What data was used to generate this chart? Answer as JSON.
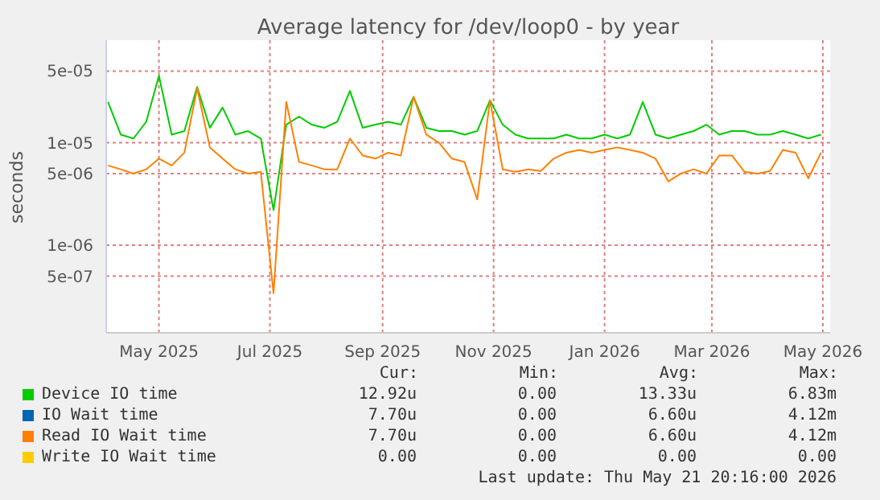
{
  "chart_data": {
    "type": "line",
    "title": "Average latency for /dev/loop0 - by year",
    "ylabel": "seconds",
    "x": [
      "2025-04-03",
      "2025-04-10",
      "2025-04-17",
      "2025-04-24",
      "2025-05-01",
      "2025-05-08",
      "2025-05-15",
      "2025-05-22",
      "2025-05-29",
      "2025-06-05",
      "2025-06-12",
      "2025-06-19",
      "2025-06-26",
      "2025-07-03",
      "2025-07-10",
      "2025-07-17",
      "2025-07-24",
      "2025-07-31",
      "2025-08-07",
      "2025-08-14",
      "2025-08-21",
      "2025-08-28",
      "2025-09-04",
      "2025-09-11",
      "2025-09-18",
      "2025-09-25",
      "2025-10-02",
      "2025-10-09",
      "2025-10-16",
      "2025-10-23",
      "2025-10-30",
      "2025-11-06",
      "2025-11-13",
      "2025-11-20",
      "2025-11-27",
      "2025-12-04",
      "2025-12-11",
      "2025-12-18",
      "2025-12-25",
      "2026-01-01",
      "2026-01-08",
      "2026-01-15",
      "2026-01-22",
      "2026-01-29",
      "2026-02-05",
      "2026-02-12",
      "2026-02-19",
      "2026-02-26",
      "2026-03-05",
      "2026-03-12",
      "2026-03-19",
      "2026-03-26",
      "2026-04-02",
      "2026-04-09",
      "2026-04-16",
      "2026-04-23",
      "2026-04-30"
    ],
    "series": [
      {
        "name": "Device IO time",
        "color": "#00cc00",
        "values": [
          2.5e-05,
          1.2e-05,
          1.1e-05,
          1.6e-05,
          4.5e-05,
          1.2e-05,
          1.3e-05,
          3.5e-05,
          1.4e-05,
          2.2e-05,
          1.2e-05,
          1.3e-05,
          1.1e-05,
          2.2e-06,
          1.5e-05,
          1.8e-05,
          1.5e-05,
          1.4e-05,
          1.6e-05,
          3.2e-05,
          1.4e-05,
          1.5e-05,
          1.6e-05,
          1.5e-05,
          2.8e-05,
          1.4e-05,
          1.3e-05,
          1.3e-05,
          1.2e-05,
          1.3e-05,
          2.6e-05,
          1.5e-05,
          1.2e-05,
          1.1e-05,
          1.1e-05,
          1.1e-05,
          1.2e-05,
          1.1e-05,
          1.1e-05,
          1.2e-05,
          1.1e-05,
          1.2e-05,
          2.5e-05,
          1.2e-05,
          1.1e-05,
          1.2e-05,
          1.3e-05,
          1.5e-05,
          1.2e-05,
          1.3e-05,
          1.3e-05,
          1.2e-05,
          1.2e-05,
          1.3e-05,
          1.2e-05,
          1.1e-05,
          1.2e-05
        ]
      },
      {
        "name": "IO Wait time",
        "color": "#0066b3",
        "values": [
          null,
          null,
          null,
          null,
          null,
          null,
          null,
          null,
          null,
          null,
          null,
          null,
          null,
          null,
          null,
          null,
          null,
          null,
          null,
          null,
          null,
          null,
          null,
          null,
          null,
          null,
          null,
          null,
          null,
          null,
          null,
          null,
          null,
          null,
          null,
          null,
          null,
          null,
          null,
          null,
          null,
          null,
          null,
          null,
          null,
          null,
          null,
          null,
          null,
          null,
          null,
          null,
          null,
          null,
          null,
          null,
          null
        ]
      },
      {
        "name": "Read IO Wait time",
        "color": "#ff8000",
        "values": [
          6e-06,
          5.5e-06,
          5e-06,
          5.5e-06,
          7e-06,
          6e-06,
          8e-06,
          3.4e-05,
          9e-06,
          7e-06,
          5.5e-06,
          5e-06,
          5.2e-06,
          3.4e-07,
          2.5e-05,
          6.5e-06,
          6e-06,
          5.5e-06,
          5.5e-06,
          1.1e-05,
          7.5e-06,
          7e-06,
          8e-06,
          7.5e-06,
          2.8e-05,
          1.2e-05,
          1e-05,
          7e-06,
          6.5e-06,
          2.8e-06,
          2.6e-05,
          5.5e-06,
          5.2e-06,
          5.5e-06,
          5.3e-06,
          7e-06,
          8e-06,
          8.5e-06,
          8e-06,
          8.5e-06,
          9e-06,
          8.5e-06,
          8e-06,
          7e-06,
          4.2e-06,
          5e-06,
          5.5e-06,
          5e-06,
          7.5e-06,
          7.5e-06,
          5.2e-06,
          5e-06,
          5.3e-06,
          8.5e-06,
          8e-06,
          4.5e-06,
          8e-06
        ]
      },
      {
        "name": "Write IO Wait time",
        "color": "#ffcc00",
        "values": [
          null,
          null,
          null,
          null,
          null,
          null,
          null,
          null,
          null,
          null,
          null,
          null,
          null,
          null,
          null,
          null,
          null,
          null,
          null,
          null,
          null,
          null,
          null,
          null,
          null,
          null,
          null,
          null,
          null,
          null,
          null,
          null,
          null,
          null,
          null,
          null,
          null,
          null,
          null,
          null,
          null,
          null,
          null,
          null,
          null,
          null,
          null,
          null,
          null,
          null,
          null,
          null,
          null,
          null,
          null,
          null,
          null
        ]
      }
    ],
    "xlim": [
      "2025-04-02",
      "2026-05-05"
    ],
    "xticks": [
      {
        "value": "2025-05-01",
        "label": "May 2025"
      },
      {
        "value": "2025-07-01",
        "label": "Jul 2025"
      },
      {
        "value": "2025-09-01",
        "label": "Sep 2025"
      },
      {
        "value": "2025-11-01",
        "label": "Nov 2025"
      },
      {
        "value": "2026-01-01",
        "label": "Jan 2026"
      },
      {
        "value": "2026-03-01",
        "label": "Mar 2026"
      },
      {
        "value": "2026-05-01",
        "label": "May 2026"
      }
    ],
    "ylim": [
      1.4e-07,
      0.0001
    ],
    "yticks": [
      {
        "value": 5e-07,
        "label": "5e-07"
      },
      {
        "value": 1e-06,
        "label": "1e-06"
      },
      {
        "value": 5e-06,
        "label": "5e-06"
      },
      {
        "value": 1e-05,
        "label": "1e-05"
      },
      {
        "value": 5e-05,
        "label": "5e-05"
      }
    ],
    "log": "y",
    "grid": true,
    "legend": "bottom",
    "marker": "none",
    "line_style": "solid",
    "annotations": [
      "Cur:",
      "Min:",
      "Avg:",
      "Max:",
      "12.92u",
      "0.00",
      "13.33u",
      "6.83m",
      "7.70u",
      "0.00",
      "6.60u",
      "4.12m",
      "7.70u",
      "0.00",
      "6.60u",
      "4.12m",
      "0.00",
      "0.00",
      "0.00",
      "0.00",
      "Last update: Thu May 21 20:16:00 2026"
    ]
  }
}
